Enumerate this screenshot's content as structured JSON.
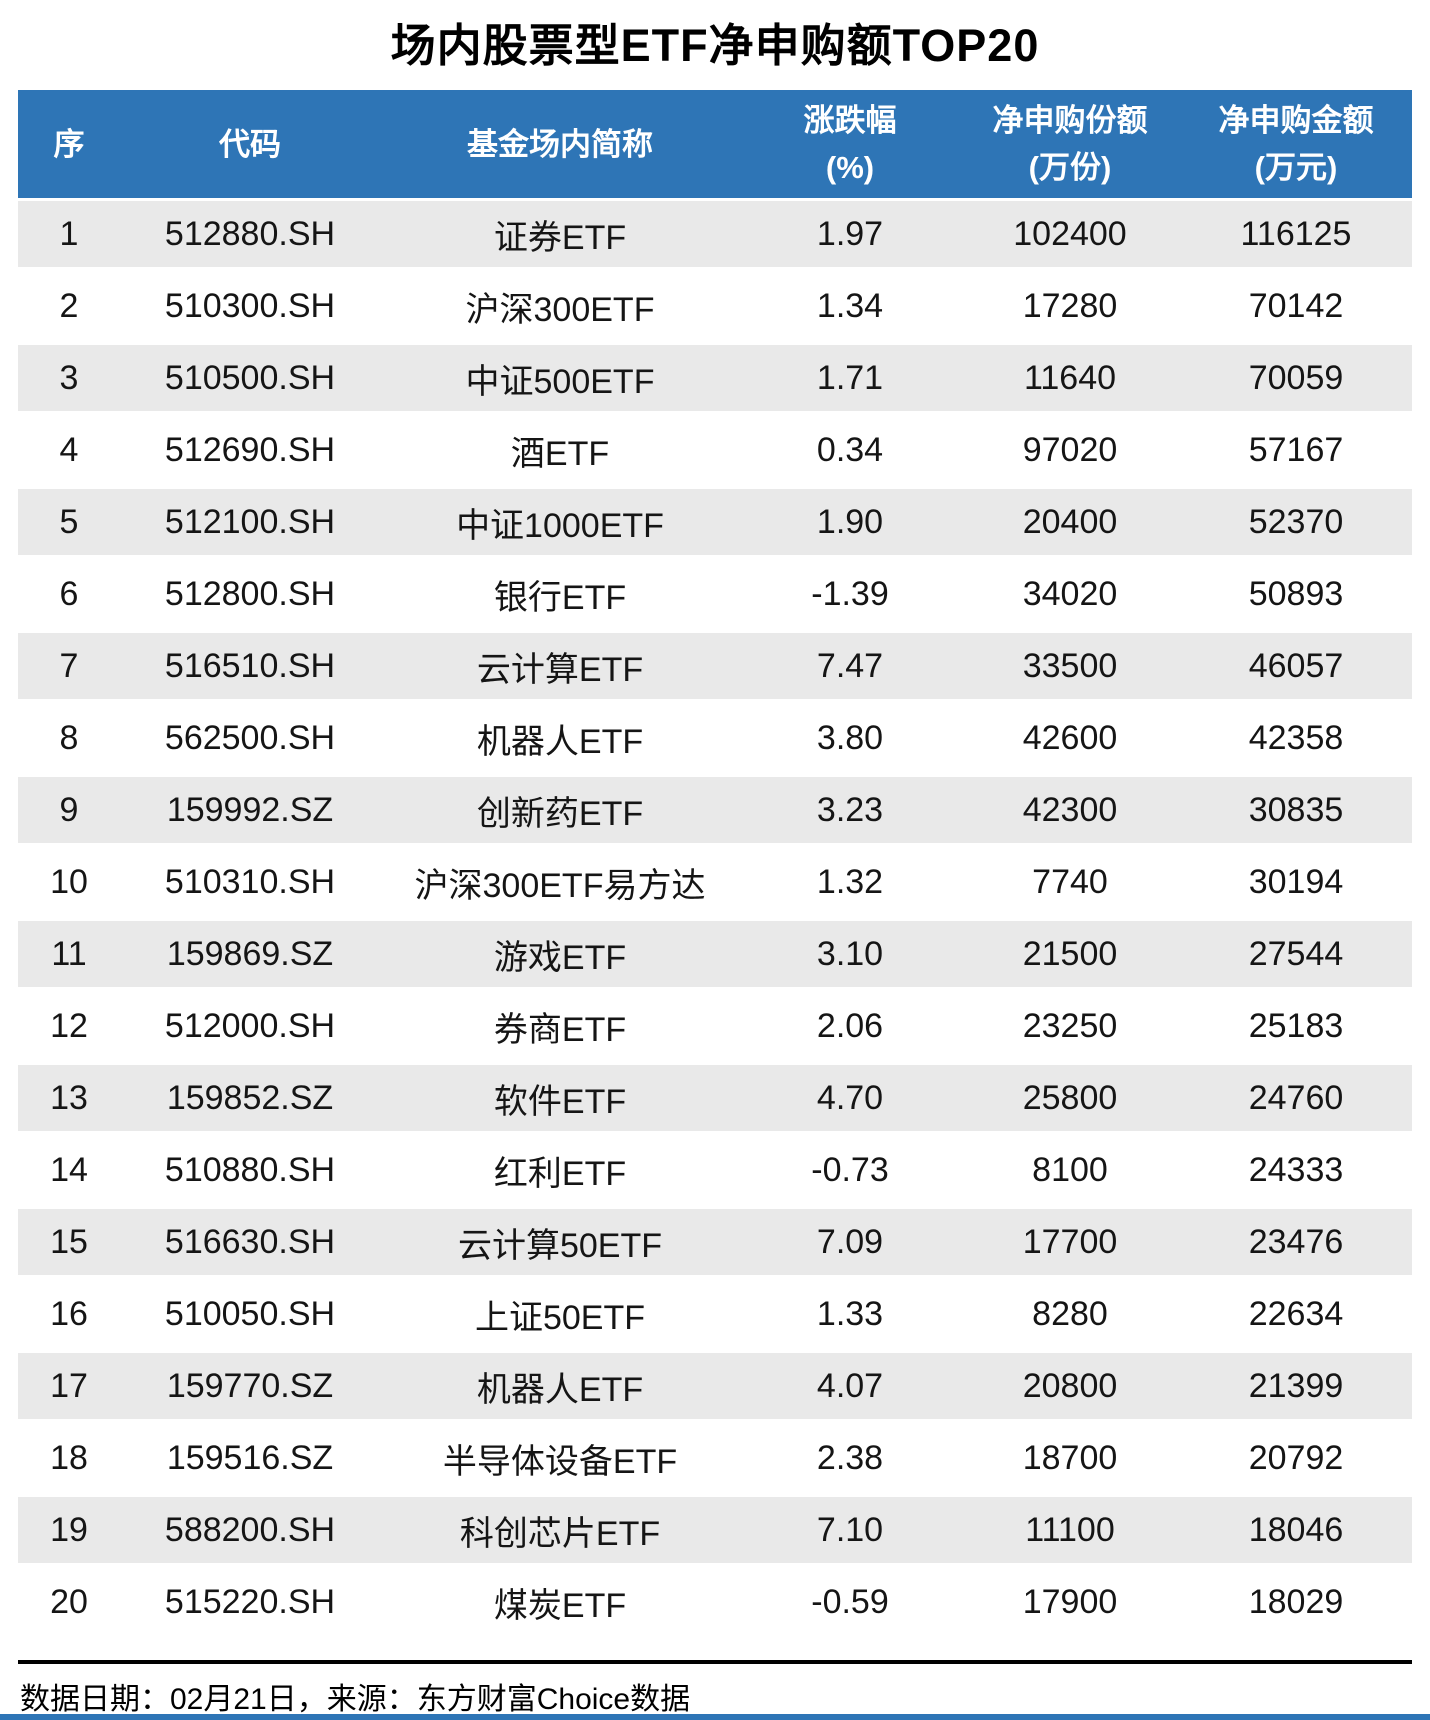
{
  "title": "场内股票型ETF净申购额TOP20",
  "colors": {
    "header_bg": "#2E75B6",
    "alt_row_bg": "#E9E9E9",
    "divider": "#000000",
    "accent_bar": "#2E75B6",
    "text": "#151515"
  },
  "table": {
    "headers": [
      {
        "line1": "序",
        "line2": ""
      },
      {
        "line1": "代码",
        "line2": ""
      },
      {
        "line1": "基金场内简称",
        "line2": ""
      },
      {
        "line1": "涨跌幅",
        "line2": "(%)"
      },
      {
        "line1": "净申购份额",
        "line2": "(万份)"
      },
      {
        "line1": "净申购金额",
        "line2": "(万元)"
      }
    ]
  },
  "chart_data": {
    "type": "table",
    "title": "场内股票型ETF净申购额TOP20",
    "columns": [
      "序",
      "代码",
      "基金场内简称",
      "涨跌幅(%)",
      "净申购份额(万份)",
      "净申购金额(万元)"
    ],
    "rows": [
      [
        "1",
        "512880.SH",
        "证券ETF",
        "1.97",
        "102400",
        "116125"
      ],
      [
        "2",
        "510300.SH",
        "沪深300ETF",
        "1.34",
        "17280",
        "70142"
      ],
      [
        "3",
        "510500.SH",
        "中证500ETF",
        "1.71",
        "11640",
        "70059"
      ],
      [
        "4",
        "512690.SH",
        "酒ETF",
        "0.34",
        "97020",
        "57167"
      ],
      [
        "5",
        "512100.SH",
        "中证1000ETF",
        "1.90",
        "20400",
        "52370"
      ],
      [
        "6",
        "512800.SH",
        "银行ETF",
        "-1.39",
        "34020",
        "50893"
      ],
      [
        "7",
        "516510.SH",
        "云计算ETF",
        "7.47",
        "33500",
        "46057"
      ],
      [
        "8",
        "562500.SH",
        "机器人ETF",
        "3.80",
        "42600",
        "42358"
      ],
      [
        "9",
        "159992.SZ",
        "创新药ETF",
        "3.23",
        "42300",
        "30835"
      ],
      [
        "10",
        "510310.SH",
        "沪深300ETF易方达",
        "1.32",
        "7740",
        "30194"
      ],
      [
        "11",
        "159869.SZ",
        "游戏ETF",
        "3.10",
        "21500",
        "27544"
      ],
      [
        "12",
        "512000.SH",
        "券商ETF",
        "2.06",
        "23250",
        "25183"
      ],
      [
        "13",
        "159852.SZ",
        "软件ETF",
        "4.70",
        "25800",
        "24760"
      ],
      [
        "14",
        "510880.SH",
        "红利ETF",
        "-0.73",
        "8100",
        "24333"
      ],
      [
        "15",
        "516630.SH",
        "云计算50ETF",
        "7.09",
        "17700",
        "23476"
      ],
      [
        "16",
        "510050.SH",
        "上证50ETF",
        "1.33",
        "8280",
        "22634"
      ],
      [
        "17",
        "159770.SZ",
        "机器人ETF",
        "4.07",
        "20800",
        "21399"
      ],
      [
        "18",
        "159516.SZ",
        "半导体设备ETF",
        "2.38",
        "18700",
        "20792"
      ],
      [
        "19",
        "588200.SH",
        "科创芯片ETF",
        "7.10",
        "11100",
        "18046"
      ],
      [
        "20",
        "515220.SH",
        "煤炭ETF",
        "-0.59",
        "17900",
        "18029"
      ]
    ]
  },
  "footer": {
    "note": "数据日期：02月21日，来源：东方财富Choice数据"
  }
}
